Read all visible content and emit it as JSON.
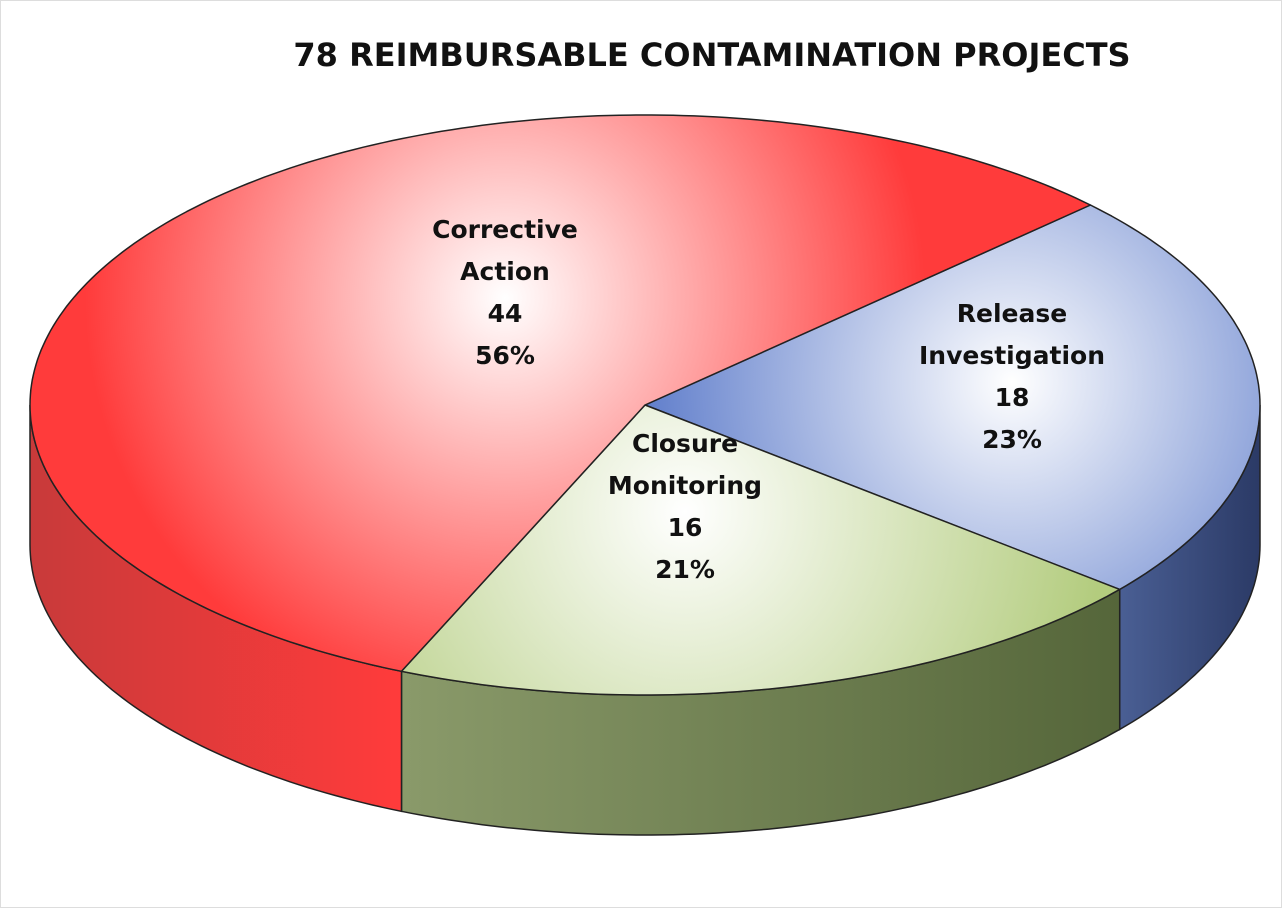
{
  "chart_data": {
    "type": "pie",
    "title": "78 REIMBURSABLE CONTAMINATION PROJECTS",
    "categories": [
      "Release Investigation",
      "Closure Monitoring",
      "Corrective Action"
    ],
    "values": [
      18,
      16,
      44
    ],
    "percent_labels": [
      "23%",
      "21%",
      "56%"
    ],
    "colors": [
      "#4a6cc4",
      "#b3cc7e",
      "#ff3b3b"
    ],
    "side_colors": [
      "#2b3a66",
      "#55663a",
      "#c83a3a"
    ]
  }
}
